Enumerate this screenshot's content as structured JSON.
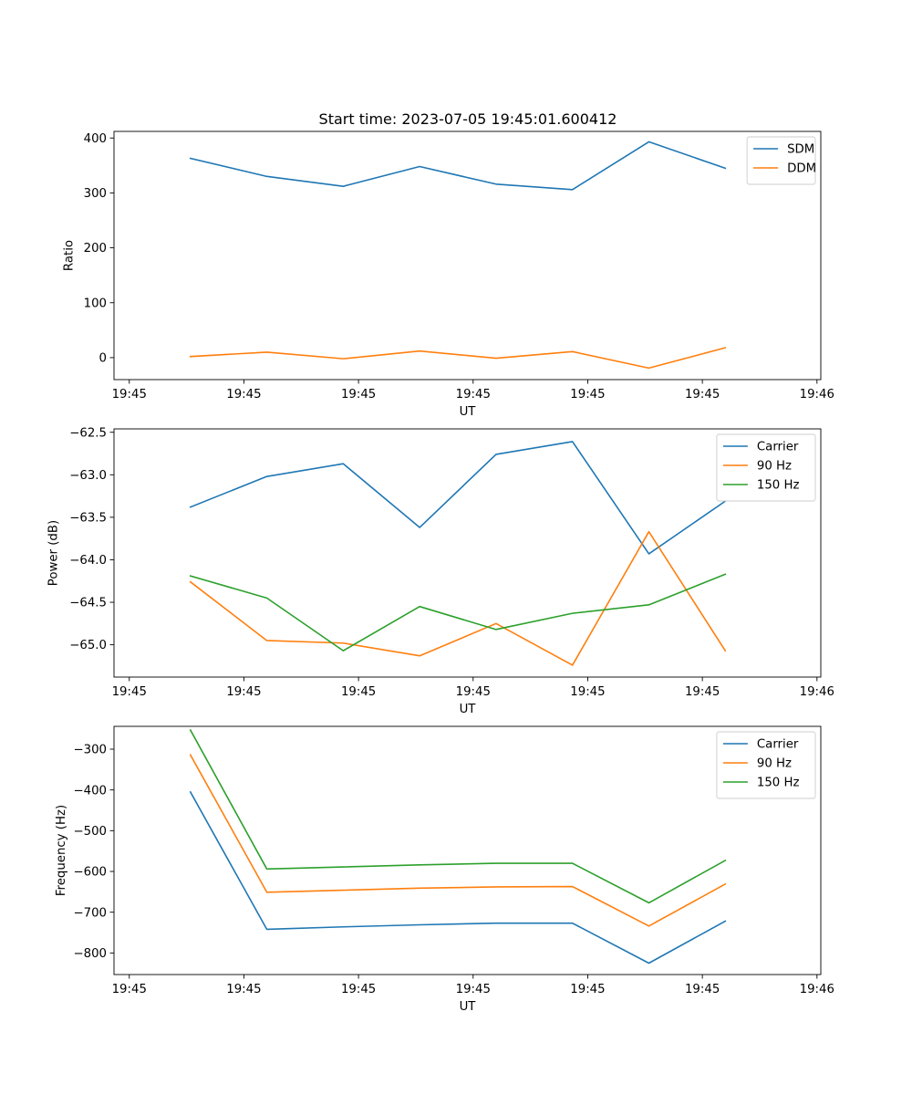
{
  "figure": {
    "title": "Start time: 2023-07-05 19:45:01.600412"
  },
  "chart_data": [
    {
      "type": "line",
      "title": "Start time: 2023-07-05 19:45:01.600412",
      "xlabel": "UT",
      "ylabel": "Ratio",
      "x": [
        1,
        2,
        3,
        4,
        5,
        6,
        7,
        8
      ],
      "xlim": [
        0,
        9.25
      ],
      "x_ticks": [
        0.2,
        1.7,
        3.2,
        4.7,
        6.2,
        7.7,
        9.2
      ],
      "x_tick_labels": [
        "19:45",
        "19:45",
        "19:45",
        "19:45",
        "19:45",
        "19:45",
        "19:46"
      ],
      "ylim": [
        -40,
        412
      ],
      "y_ticks": [
        0,
        100,
        200,
        300,
        400
      ],
      "y_tick_labels": [
        "0",
        "100",
        "200",
        "300",
        "400"
      ],
      "legend_position": "top-right",
      "series": [
        {
          "name": "SDM",
          "color": "#1f77b4",
          "values": [
            363,
            330,
            312,
            348,
            316,
            306,
            393,
            345
          ]
        },
        {
          "name": "DDM",
          "color": "#ff7f0e",
          "values": [
            2,
            10,
            -2,
            12,
            -1,
            11,
            -19,
            18
          ]
        }
      ]
    },
    {
      "type": "line",
      "title": "",
      "xlabel": "UT",
      "ylabel": "Power (dB)",
      "x": [
        1,
        2,
        3,
        4,
        5,
        6,
        7,
        8
      ],
      "xlim": [
        0,
        9.25
      ],
      "x_ticks": [
        0.2,
        1.7,
        3.2,
        4.7,
        6.2,
        7.7,
        9.2
      ],
      "x_tick_labels": [
        "19:45",
        "19:45",
        "19:45",
        "19:45",
        "19:45",
        "19:45",
        "19:46"
      ],
      "ylim": [
        -65.38,
        -62.46
      ],
      "y_ticks": [
        -65.0,
        -64.5,
        -64.0,
        -63.5,
        -63.0,
        -62.5
      ],
      "y_tick_labels": [
        "−65.0",
        "−64.5",
        "−64.0",
        "−63.5",
        "−63.0",
        "−62.5"
      ],
      "legend_position": "top-right",
      "series": [
        {
          "name": "Carrier",
          "color": "#1f77b4",
          "values": [
            -63.38,
            -63.02,
            -62.87,
            -63.62,
            -62.76,
            -62.61,
            -63.93,
            -63.31
          ]
        },
        {
          "name": "90 Hz",
          "color": "#ff7f0e",
          "values": [
            -64.26,
            -64.95,
            -64.98,
            -65.13,
            -64.75,
            -65.24,
            -63.67,
            -65.07
          ]
        },
        {
          "name": "150 Hz",
          "color": "#2ca02c",
          "values": [
            -64.19,
            -64.45,
            -65.07,
            -64.55,
            -64.82,
            -64.63,
            -64.53,
            -64.17
          ]
        }
      ]
    },
    {
      "type": "line",
      "title": "",
      "xlabel": "UT",
      "ylabel": "Frequency (Hz)",
      "x": [
        1,
        2,
        3,
        4,
        5,
        6,
        7,
        8
      ],
      "xlim": [
        0,
        9.25
      ],
      "x_ticks": [
        0.2,
        1.7,
        3.2,
        4.7,
        6.2,
        7.7,
        9.2
      ],
      "x_tick_labels": [
        "19:45",
        "19:45",
        "19:45",
        "19:45",
        "19:45",
        "19:45",
        "19:46"
      ],
      "ylim": [
        -853,
        -244
      ],
      "y_ticks": [
        -800,
        -700,
        -600,
        -500,
        -400,
        -300
      ],
      "y_tick_labels": [
        "−800",
        "−700",
        "−600",
        "−500",
        "−400",
        "−300"
      ],
      "legend_position": "top-right",
      "series": [
        {
          "name": "Carrier",
          "color": "#1f77b4",
          "values": [
            -405,
            -742,
            -736,
            -731,
            -727,
            -727,
            -825,
            -722
          ]
        },
        {
          "name": "90 Hz",
          "color": "#ff7f0e",
          "values": [
            -314,
            -651,
            -646,
            -641,
            -638,
            -637,
            -734,
            -631
          ]
        },
        {
          "name": "150 Hz",
          "color": "#2ca02c",
          "values": [
            -253,
            -594,
            -589,
            -584,
            -580,
            -580,
            -677,
            -573
          ]
        }
      ]
    }
  ]
}
